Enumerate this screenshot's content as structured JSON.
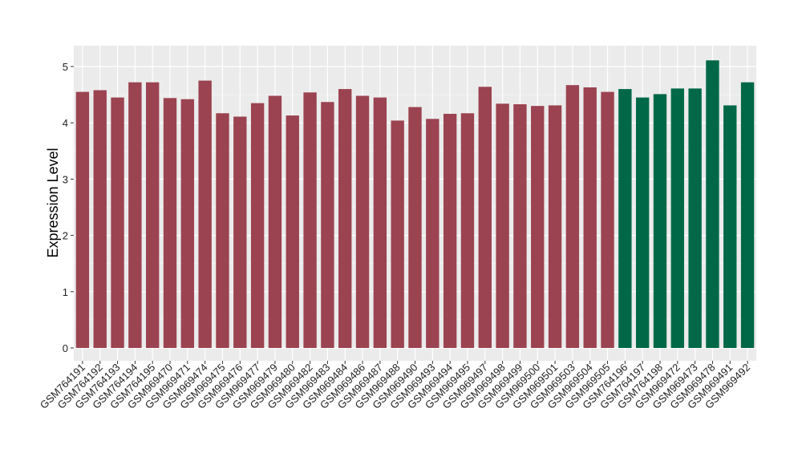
{
  "chart_data": {
    "type": "bar",
    "title": "",
    "xlabel": "",
    "ylabel": "Expression Level",
    "ylim": [
      -0.2,
      5.35
    ],
    "yticks": [
      0,
      1,
      2,
      3,
      4,
      5
    ],
    "grid": true,
    "panel_background": "#ebebeb",
    "categories": [
      "GSM764191",
      "GSM764192",
      "GSM764193",
      "GSM764194",
      "GSM764195",
      "GSM969470",
      "GSM969471",
      "GSM969474",
      "GSM969475",
      "GSM969476",
      "GSM969477",
      "GSM969479",
      "GSM969480",
      "GSM969482",
      "GSM969483",
      "GSM969484",
      "GSM969486",
      "GSM969487",
      "GSM969488",
      "GSM969490",
      "GSM969493",
      "GSM969494",
      "GSM969495",
      "GSM969497",
      "GSM969498",
      "GSM969499",
      "GSM969500",
      "GSM969501",
      "GSM969503",
      "GSM969504",
      "GSM969505",
      "GSM764196",
      "GSM764197",
      "GSM764198",
      "GSM969472",
      "GSM969473",
      "GSM969478",
      "GSM969491",
      "GSM969492"
    ],
    "values": [
      4.55,
      4.58,
      4.45,
      4.72,
      4.72,
      4.44,
      4.42,
      4.75,
      4.17,
      4.11,
      4.35,
      4.48,
      4.13,
      4.54,
      4.37,
      4.6,
      4.48,
      4.45,
      4.04,
      4.28,
      4.07,
      4.16,
      4.17,
      4.64,
      4.34,
      4.33,
      4.3,
      4.31,
      4.67,
      4.63,
      4.55,
      4.6,
      4.45,
      4.51,
      4.61,
      4.61,
      5.11,
      4.31,
      4.72
    ],
    "colors": [
      "#9b4350",
      "#9b4350",
      "#9b4350",
      "#9b4350",
      "#9b4350",
      "#9b4350",
      "#9b4350",
      "#9b4350",
      "#9b4350",
      "#9b4350",
      "#9b4350",
      "#9b4350",
      "#9b4350",
      "#9b4350",
      "#9b4350",
      "#9b4350",
      "#9b4350",
      "#9b4350",
      "#9b4350",
      "#9b4350",
      "#9b4350",
      "#9b4350",
      "#9b4350",
      "#9b4350",
      "#9b4350",
      "#9b4350",
      "#9b4350",
      "#9b4350",
      "#9b4350",
      "#9b4350",
      "#9b4350",
      "#006847",
      "#006847",
      "#006847",
      "#006847",
      "#006847",
      "#006847",
      "#006847",
      "#006847"
    ]
  }
}
